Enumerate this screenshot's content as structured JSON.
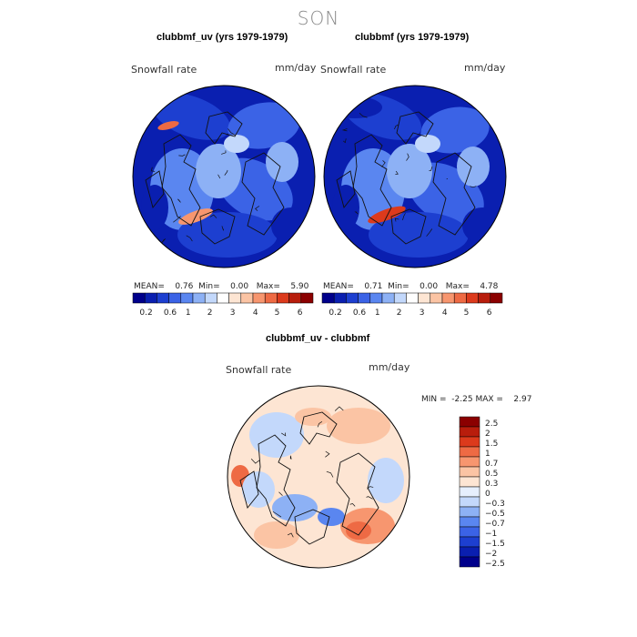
{
  "season": "SON",
  "panels": [
    {
      "title": "clubbmf_uv (yrs 1979-1979)",
      "variable": "Snowfall rate",
      "units": "mm/day",
      "mean_label": "MEAN=",
      "mean": "0.76",
      "min_label": "Min=",
      "min": "0.00",
      "max_label": "Max=",
      "max": "5.90"
    },
    {
      "title": "clubbmf (yrs 1979-1979)",
      "variable": "Snowfall rate",
      "units": "mm/day",
      "mean_label": "MEAN=",
      "mean": "0.71",
      "min_label": "Min=",
      "min": "0.00",
      "max_label": "Max=",
      "max": "4.78"
    }
  ],
  "colorbar_h": {
    "colors": [
      "#00008b",
      "#0a1fb0",
      "#1d3fd0",
      "#3b63e6",
      "#5a86f0",
      "#8db1f5",
      "#c3d8fb",
      "#ffffff",
      "#fde5d3",
      "#fbc4a4",
      "#f7966f",
      "#ee6a44",
      "#dc3a1c",
      "#b81d0c",
      "#8b0000"
    ],
    "tick_labels": [
      "0.2",
      "0.6",
      "1",
      "2",
      "3",
      "4",
      "5",
      "6"
    ]
  },
  "diff": {
    "title": "clubbmf_uv - clubbmf",
    "variable": "Snowfall rate",
    "units": "mm/day",
    "min_label": "MIN =",
    "min": "-2.25",
    "max_label": "MAX =",
    "max": "2.97"
  },
  "colorbar_v": {
    "colors": [
      "#00008b",
      "#0a1fb0",
      "#1d3fd0",
      "#3b63e6",
      "#5a86f0",
      "#8db1f5",
      "#c3d8fb",
      "#e6effd",
      "#fde5d3",
      "#fbc4a4",
      "#f7966f",
      "#ee6a44",
      "#dc3a1c",
      "#b81d0c",
      "#8b0000"
    ],
    "tick_labels": [
      "2.5",
      "2",
      "1.5",
      "1",
      "0.7",
      "0.5",
      "0.3",
      "0",
      "−0.3",
      "−0.5",
      "−0.7",
      "−1",
      "−1.5",
      "−2",
      "−2.5"
    ]
  },
  "chart_data": [
    {
      "type": "heatmap",
      "title": "clubbmf_uv (yrs 1979-1979)",
      "subtitle": "SON",
      "variable": "Snowfall rate",
      "units": "mm/day",
      "projection": "north polar stereographic",
      "mean": 0.76,
      "min": 0.0,
      "max": 5.9,
      "contour_levels": [
        0.2,
        0.6,
        1,
        2,
        3,
        4,
        5,
        6
      ]
    },
    {
      "type": "heatmap",
      "title": "clubbmf (yrs 1979-1979)",
      "subtitle": "SON",
      "variable": "Snowfall rate",
      "units": "mm/day",
      "projection": "north polar stereographic",
      "mean": 0.71,
      "min": 0.0,
      "max": 4.78,
      "contour_levels": [
        0.2,
        0.6,
        1,
        2,
        3,
        4,
        5,
        6
      ]
    },
    {
      "type": "heatmap",
      "title": "clubbmf_uv - clubbmf",
      "variable": "Snowfall rate",
      "units": "mm/day",
      "projection": "north polar stereographic",
      "min": -2.25,
      "max": 2.97,
      "contour_levels": [
        -2.5,
        -2,
        -1.5,
        -1,
        -0.7,
        -0.5,
        -0.3,
        0,
        0.3,
        0.5,
        0.7,
        1,
        1.5,
        2,
        2.5
      ]
    }
  ]
}
